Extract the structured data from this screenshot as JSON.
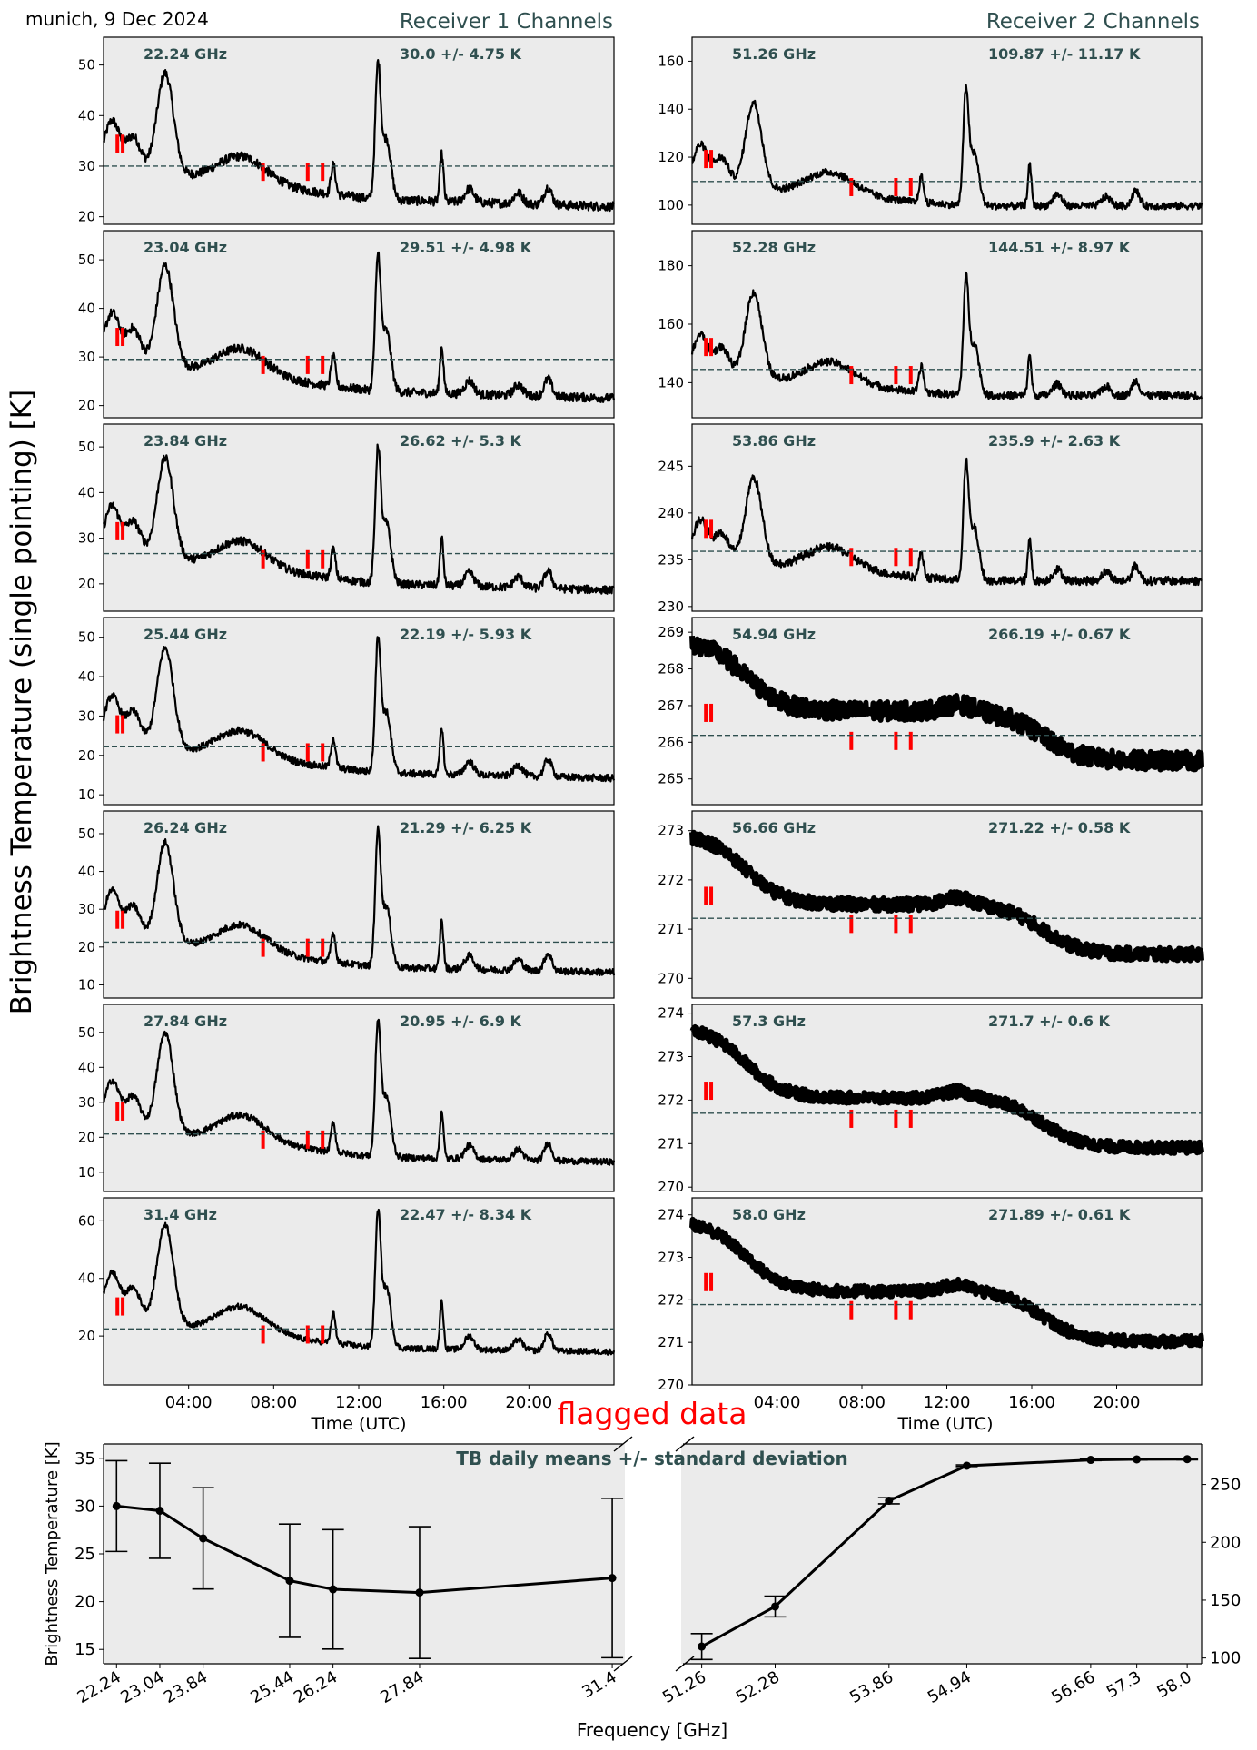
{
  "figure": {
    "location_date": "munich, 9 Dec 2024",
    "receiver1_title": "Receiver 1 Channels",
    "receiver2_title": "Receiver 2 Channels",
    "ylabel": "Brightness Temperature (single pointing) [K]",
    "xlabel": "Time (UTC)",
    "time_ticks": [
      "04:00",
      "08:00",
      "12:00",
      "16:00",
      "20:00"
    ],
    "flagged_label": "flagged data"
  },
  "colors": {
    "background": "#ebebeb",
    "series": "#000000",
    "flag": "#ff0000",
    "annotation": "#2f4f4f",
    "mean_line": "#2f4f4f"
  },
  "chart_data": [
    {
      "type": "line",
      "receiver": 1,
      "freq_label": "22.24 GHz",
      "stats": "30.0 +/- 4.75 K",
      "mean": 30.0,
      "ylim": [
        18.5,
        55.5
      ],
      "yticks": [
        20,
        30,
        40,
        50
      ],
      "noise": 0.9,
      "xlim_hours": [
        0,
        24
      ]
    },
    {
      "type": "line",
      "receiver": 1,
      "freq_label": "23.04 GHz",
      "stats": "29.51 +/- 4.98 K",
      "mean": 29.51,
      "ylim": [
        17.5,
        56
      ],
      "yticks": [
        20,
        30,
        40,
        50
      ],
      "noise": 0.9,
      "xlim_hours": [
        0,
        24
      ]
    },
    {
      "type": "line",
      "receiver": 1,
      "freq_label": "23.84 GHz",
      "stats": "26.62 +/- 5.3 K",
      "mean": 26.62,
      "ylim": [
        14,
        55
      ],
      "yticks": [
        20,
        30,
        40,
        50
      ],
      "noise": 0.9,
      "xlim_hours": [
        0,
        24
      ]
    },
    {
      "type": "line",
      "receiver": 1,
      "freq_label": "25.44 GHz",
      "stats": "22.19 +/- 5.93 K",
      "mean": 22.19,
      "ylim": [
        7.5,
        55
      ],
      "yticks": [
        10,
        20,
        30,
        40,
        50
      ],
      "noise": 0.9,
      "xlim_hours": [
        0,
        24
      ]
    },
    {
      "type": "line",
      "receiver": 1,
      "freq_label": "26.24 GHz",
      "stats": "21.29 +/- 6.25 K",
      "mean": 21.29,
      "ylim": [
        6.5,
        56
      ],
      "yticks": [
        10,
        20,
        30,
        40,
        50
      ],
      "noise": 0.9,
      "xlim_hours": [
        0,
        24
      ]
    },
    {
      "type": "line",
      "receiver": 1,
      "freq_label": "27.84 GHz",
      "stats": "20.95 +/- 6.9 K",
      "mean": 20.95,
      "ylim": [
        4.5,
        58
      ],
      "yticks": [
        10,
        20,
        30,
        40,
        50
      ],
      "noise": 0.9,
      "xlim_hours": [
        0,
        24
      ]
    },
    {
      "type": "line",
      "receiver": 1,
      "freq_label": "31.4 GHz",
      "stats": "22.47 +/- 8.34 K",
      "mean": 22.47,
      "ylim": [
        3,
        68
      ],
      "yticks": [
        20,
        40,
        60
      ],
      "noise": 1.0,
      "xlim_hours": [
        0,
        24
      ]
    },
    {
      "type": "line",
      "receiver": 2,
      "freq_label": "51.26 GHz",
      "stats": "109.87 +/- 11.17 K",
      "mean": 109.87,
      "ylim": [
        92,
        170
      ],
      "yticks": [
        100,
        120,
        140,
        160
      ],
      "noise": 1.5,
      "xlim_hours": [
        0,
        24
      ]
    },
    {
      "type": "line",
      "receiver": 2,
      "freq_label": "52.28 GHz",
      "stats": "144.51 +/- 8.97 K",
      "mean": 144.51,
      "ylim": [
        128,
        192
      ],
      "yticks": [
        140,
        160,
        180
      ],
      "noise": 1.3,
      "xlim_hours": [
        0,
        24
      ]
    },
    {
      "type": "line",
      "receiver": 2,
      "freq_label": "53.86 GHz",
      "stats": "235.9 +/- 2.63 K",
      "mean": 235.9,
      "ylim": [
        229.5,
        249.5
      ],
      "yticks": [
        230,
        235,
        240,
        245
      ],
      "noise": 0.45,
      "xlim_hours": [
        0,
        24
      ]
    },
    {
      "type": "line",
      "receiver": 2,
      "freq_label": "54.94 GHz",
      "stats": "266.19 +/- 0.67 K",
      "mean": 266.19,
      "ylim": [
        264.3,
        269.4
      ],
      "yticks": [
        265,
        266,
        267,
        268,
        269
      ],
      "noise": 0.25,
      "xlim_hours": [
        0,
        24
      ]
    },
    {
      "type": "line",
      "receiver": 2,
      "freq_label": "56.66 GHz",
      "stats": "271.22 +/- 0.58 K",
      "mean": 271.22,
      "ylim": [
        269.6,
        273.4
      ],
      "yticks": [
        270,
        271,
        272,
        273
      ],
      "noise": 0.13,
      "xlim_hours": [
        0,
        24
      ]
    },
    {
      "type": "line",
      "receiver": 2,
      "freq_label": "57.3 GHz",
      "stats": "271.7 +/- 0.6 K",
      "mean": 271.7,
      "ylim": [
        269.9,
        274.2
      ],
      "yticks": [
        270,
        271,
        272,
        273,
        274
      ],
      "noise": 0.13,
      "xlim_hours": [
        0,
        24
      ]
    },
    {
      "type": "line",
      "receiver": 2,
      "freq_label": "58.0 GHz",
      "stats": "271.89 +/- 0.61 K",
      "mean": 271.89,
      "ylim": [
        270,
        274.4
      ],
      "yticks": [
        270,
        271,
        272,
        273,
        274
      ],
      "noise": 0.13,
      "xlim_hours": [
        0,
        24
      ]
    },
    {
      "type": "errorbar",
      "title": "TB daily means +/- standard deviation",
      "xlabel": "Frequency [GHz]",
      "ylabel": "Brightness Temperature [K]",
      "left": {
        "x": [
          22.24,
          23.04,
          23.84,
          25.44,
          26.24,
          27.84,
          31.4
        ],
        "y": [
          30.0,
          29.51,
          26.62,
          22.19,
          21.29,
          20.95,
          22.47
        ],
        "err": [
          4.75,
          4.98,
          5.3,
          5.93,
          6.25,
          6.9,
          8.34
        ],
        "xlim": [
          22.0,
          31.6
        ],
        "ylim": [
          13.5,
          36.5
        ],
        "yticks": [
          15,
          20,
          25,
          30,
          35
        ]
      },
      "right": {
        "x": [
          51.26,
          52.28,
          53.86,
          54.94,
          56.66,
          57.3,
          58.0
        ],
        "y": [
          109.87,
          144.51,
          235.9,
          266.19,
          271.22,
          271.7,
          271.89
        ],
        "err": [
          11.17,
          8.97,
          2.63,
          0.67,
          0.58,
          0.6,
          0.61
        ],
        "xlim": [
          51.0,
          58.2
        ],
        "ylim": [
          95,
          285
        ],
        "yticks": [
          100,
          150,
          200,
          250
        ]
      },
      "xticklabels_left": [
        "22.24",
        "23.04",
        "23.84",
        "25.44",
        "26.24",
        "27.84",
        "31.4"
      ],
      "xticklabels_right": [
        "51.26",
        "52.28",
        "53.86",
        "54.94",
        "56.66",
        "57.3",
        "58.0"
      ]
    }
  ]
}
